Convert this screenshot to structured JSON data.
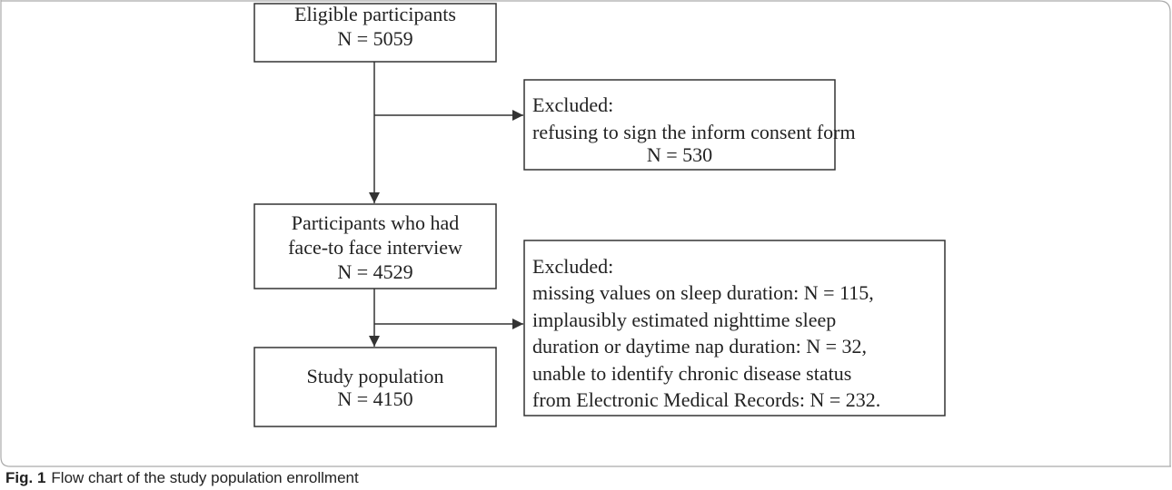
{
  "nodes": [
    {
      "lines": [
        "Eligible participants",
        "N = 5059"
      ]
    },
    {
      "lines": [
        "Excluded:",
        "refusing to sign the inform consent form",
        "N = 530"
      ]
    },
    {
      "lines": [
        "Participants who had",
        "face-to face interview",
        "N = 4529"
      ]
    },
    {
      "lines": [
        "Excluded:",
        "missing values on sleep duration: N = 115,",
        "implausibly estimated nighttime sleep",
        "duration or daytime nap duration: N = 32,",
        "unable to identify chronic disease status",
        "from Electronic Medical Records: N = 232."
      ]
    },
    {
      "lines": [
        "Study population",
        "N = 4150"
      ]
    }
  ],
  "caption": {
    "label": "Fig. 1",
    "text": "Flow chart of the study population enrollment"
  }
}
